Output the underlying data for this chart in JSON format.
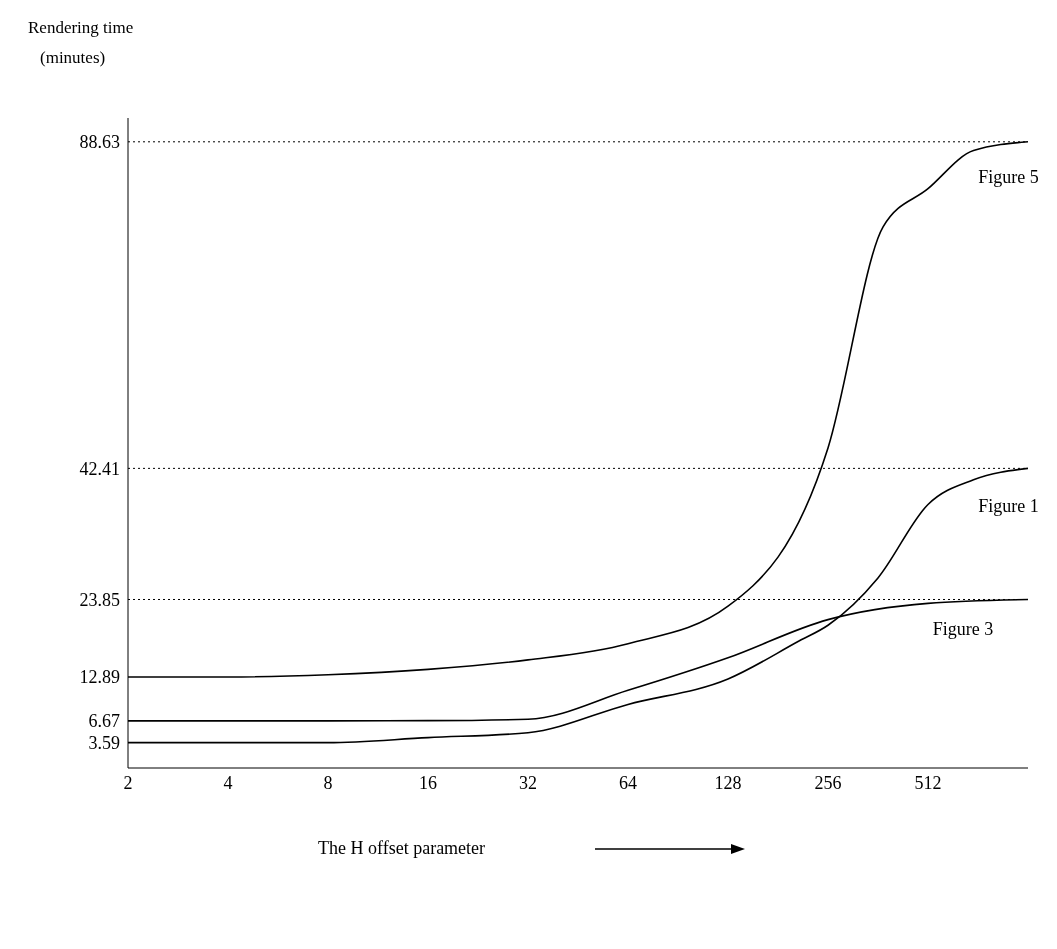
{
  "chart_data": {
    "type": "line",
    "xlabel": "The H offset parameter",
    "ylabel": "Rendering time\n(minutes)",
    "series": [
      {
        "name": "Figure 5",
        "color": "#000000",
        "x": [
          2,
          4,
          8,
          16,
          32,
          64,
          128,
          256,
          375,
          512,
          702,
          1024
        ],
        "values": [
          12.89,
          12.89,
          13.2,
          13.96,
          15.3,
          17.6,
          22.9,
          45.3,
          76.6,
          82.0,
          87.4,
          88.63
        ]
      },
      {
        "name": "Figure 1",
        "color": "#000000",
        "x": [
          2,
          4,
          8,
          16,
          32,
          64,
          128,
          210,
          256,
          362,
          512,
          702,
          1024
        ],
        "values": [
          3.59,
          3.59,
          3.59,
          4.3,
          5.0,
          9.0,
          12.6,
          18.0,
          20.2,
          26.9,
          37.3,
          40.8,
          42.41
        ]
      },
      {
        "name": "Figure 3",
        "color": "#000000",
        "x": [
          2,
          4,
          8,
          16,
          32,
          64,
          128,
          256,
          512,
          1024
        ],
        "values": [
          6.67,
          6.67,
          6.67,
          6.7,
          6.9,
          11.0,
          15.6,
          21.0,
          23.3,
          23.85
        ]
      }
    ],
    "xlim": [
      2,
      1024
    ],
    "xticks": [
      2,
      4,
      8,
      16,
      32,
      64,
      128,
      256,
      512
    ],
    "log": "x",
    "ylim": [
      0,
      92
    ],
    "yticks": [
      3.59,
      6.67,
      12.89,
      23.85,
      42.41,
      88.63
    ],
    "ref_lines": [
      {
        "axis": "y",
        "value": 88.63,
        "line_style": "dotted",
        "color": "#000000"
      },
      {
        "axis": "y",
        "value": 42.41,
        "line_style": "dotted",
        "color": "#000000"
      },
      {
        "axis": "y",
        "value": 23.85,
        "line_style": "dotted",
        "color": "#000000"
      }
    ],
    "grid": false,
    "legend": false,
    "marker": "none",
    "line_style": "solid"
  }
}
